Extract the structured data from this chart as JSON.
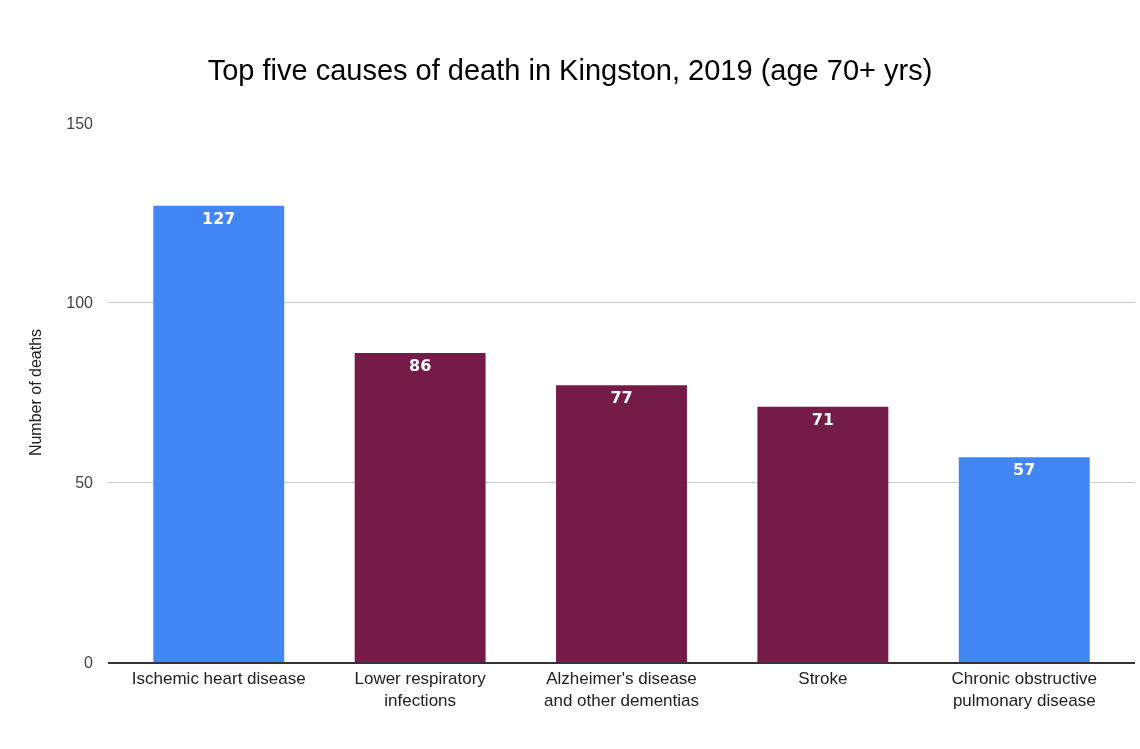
{
  "chart_data": {
    "type": "bar",
    "title": "Top five causes of death in Kingston, 2019 (age 70+ yrs)",
    "ylabel": "Number of deaths",
    "categories": [
      "Ischemic heart disease",
      "Lower respiratory infections",
      "Alzheimer's disease and other dementias",
      "Stroke",
      "Chronic obstructive pulmonary disease"
    ],
    "values": [
      127,
      86,
      77,
      71,
      57
    ],
    "colors": [
      "#4285f4",
      "#741b47",
      "#741b47",
      "#741b47",
      "#4285f4"
    ],
    "ylim": [
      0,
      150
    ],
    "yticks": [
      0,
      50,
      100,
      150
    ],
    "grid": "y",
    "data_labels": true
  }
}
